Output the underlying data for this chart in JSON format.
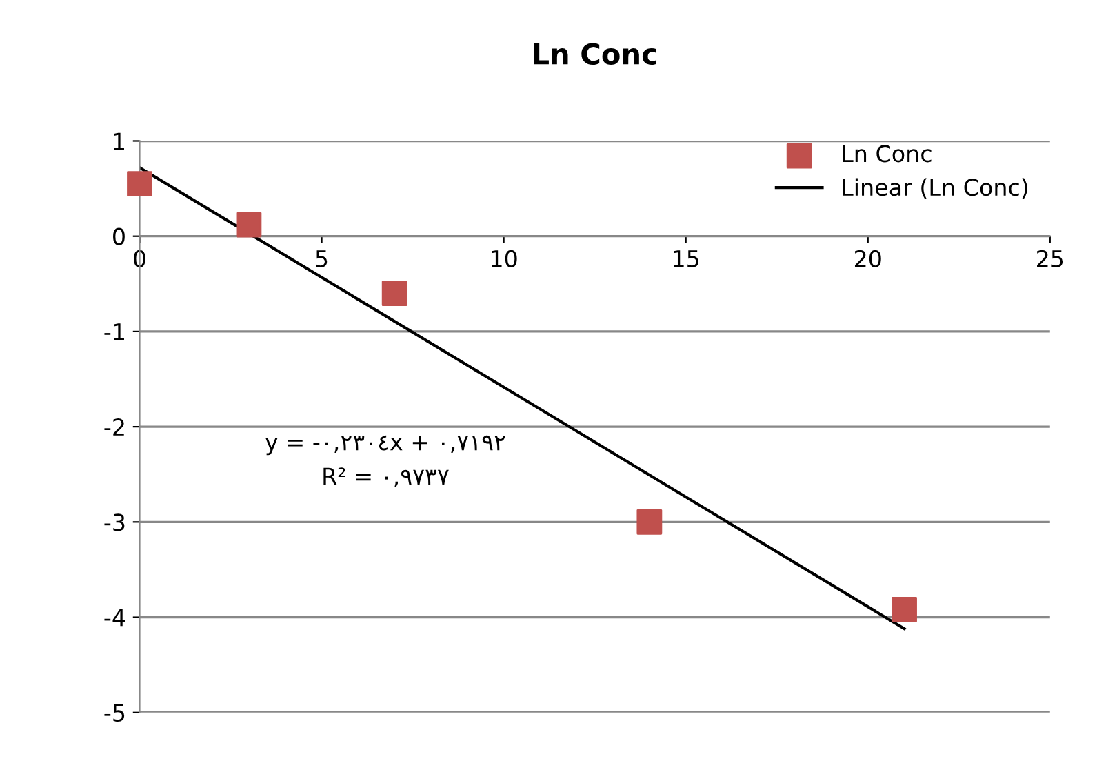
{
  "chart_data": {
    "type": "scatter",
    "title": "Ln Conc",
    "series": [
      {
        "name": "Ln Conc",
        "color": "#c0504d",
        "marker": "square",
        "x": [
          0,
          3,
          7,
          14,
          21
        ],
        "values": [
          0.55,
          0.12,
          -0.6,
          -3.0,
          -3.92
        ]
      },
      {
        "name": "Linear (Ln Conc)",
        "type": "line",
        "color": "#000000",
        "line_style": "solid",
        "marker": "none",
        "x": [
          0,
          21
        ],
        "values": [
          0.72,
          -4.12
        ]
      }
    ],
    "annotations": [
      "y = -٠,٢٣٠٤x + ٠,٧١٩٢",
      "R² = ٠,٩٧٣٧"
    ],
    "xlim": [
      0,
      25
    ],
    "xticks": [
      0,
      5,
      10,
      15,
      20,
      25
    ],
    "ylim": [
      -5,
      1
    ],
    "yticks": [
      -5,
      -4,
      -3,
      -2,
      -1,
      0,
      1
    ],
    "grid": "y",
    "legend": "top right"
  }
}
